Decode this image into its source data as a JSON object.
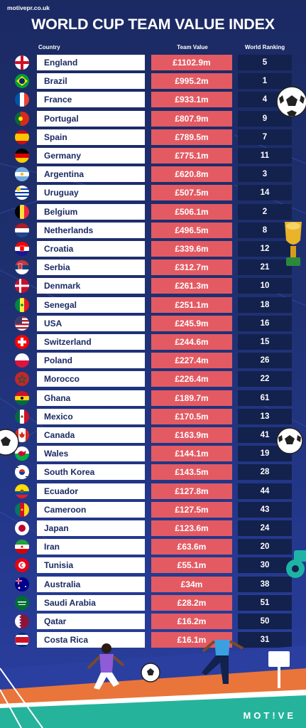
{
  "site": "motivepr.co.uk",
  "title": "WORLD CUP TEAM VALUE INDEX",
  "headers": {
    "country": "Country",
    "value": "Team Value",
    "ranking": "World Ranking"
  },
  "brand": "MOT!VE",
  "colors": {
    "background": "#1e3070",
    "value_bar": "#e35a63",
    "rank_bar": "#13214d",
    "country_bar": "#ffffff"
  },
  "chart_data": {
    "type": "table",
    "title": "WORLD CUP TEAM VALUE INDEX",
    "columns": [
      "Country",
      "Team Value",
      "World Ranking"
    ],
    "rows": [
      {
        "country": "England",
        "value": "£1102.9m",
        "rank": "5",
        "flag": "england"
      },
      {
        "country": "Brazil",
        "value": "£995.2m",
        "rank": "1",
        "flag": "brazil"
      },
      {
        "country": "France",
        "value": "£933.1m",
        "rank": "4",
        "flag": "france"
      },
      {
        "country": "Portugal",
        "value": "£807.9m",
        "rank": "9",
        "flag": "portugal"
      },
      {
        "country": "Spain",
        "value": "£789.5m",
        "rank": "7",
        "flag": "spain"
      },
      {
        "country": "Germany",
        "value": "£775.1m",
        "rank": "11",
        "flag": "germany"
      },
      {
        "country": "Argentina",
        "value": "£620.8m",
        "rank": "3",
        "flag": "argentina"
      },
      {
        "country": "Uruguay",
        "value": "£507.5m",
        "rank": "14",
        "flag": "uruguay"
      },
      {
        "country": "Belgium",
        "value": "£506.1m",
        "rank": "2",
        "flag": "belgium"
      },
      {
        "country": "Netherlands",
        "value": "£496.5m",
        "rank": "8",
        "flag": "netherlands"
      },
      {
        "country": "Croatia",
        "value": "£339.6m",
        "rank": "12",
        "flag": "croatia"
      },
      {
        "country": "Serbia",
        "value": "£312.7m",
        "rank": "21",
        "flag": "serbia"
      },
      {
        "country": "Denmark",
        "value": "£261.3m",
        "rank": "10",
        "flag": "denmark"
      },
      {
        "country": "Senegal",
        "value": "£251.1m",
        "rank": "18",
        "flag": "senegal"
      },
      {
        "country": "USA",
        "value": "£245.9m",
        "rank": "16",
        "flag": "usa"
      },
      {
        "country": "Switzerland",
        "value": "£244.6m",
        "rank": "15",
        "flag": "switzerland"
      },
      {
        "country": "Poland",
        "value": "£227.4m",
        "rank": "26",
        "flag": "poland"
      },
      {
        "country": "Morocco",
        "value": "£226.4m",
        "rank": "22",
        "flag": "morocco"
      },
      {
        "country": "Ghana",
        "value": "£189.7m",
        "rank": "61",
        "flag": "ghana"
      },
      {
        "country": "Mexico",
        "value": "£170.5m",
        "rank": "13",
        "flag": "mexico"
      },
      {
        "country": "Canada",
        "value": "£163.9m",
        "rank": "41",
        "flag": "canada"
      },
      {
        "country": "Wales",
        "value": "£144.1m",
        "rank": "19",
        "flag": "wales"
      },
      {
        "country": "South Korea",
        "value": "£143.5m",
        "rank": "28",
        "flag": "south-korea"
      },
      {
        "country": "Ecuador",
        "value": "£127.8m",
        "rank": "44",
        "flag": "ecuador"
      },
      {
        "country": "Cameroon",
        "value": "£127.5m",
        "rank": "43",
        "flag": "cameroon"
      },
      {
        "country": "Japan",
        "value": "£123.6m",
        "rank": "24",
        "flag": "japan"
      },
      {
        "country": "Iran",
        "value": "£63.6m",
        "rank": "20",
        "flag": "iran"
      },
      {
        "country": "Tunisia",
        "value": "£55.1m",
        "rank": "30",
        "flag": "tunisia"
      },
      {
        "country": "Australia",
        "value": "£34m",
        "rank": "38",
        "flag": "australia"
      },
      {
        "country": "Saudi Arabia",
        "value": "£28.2m",
        "rank": "51",
        "flag": "saudi-arabia"
      },
      {
        "country": "Qatar",
        "value": "£16.2m",
        "rank": "50",
        "flag": "qatar"
      },
      {
        "country": "Costa Rica",
        "value": "£16.1m",
        "rank": "31",
        "flag": "costa-rica"
      }
    ]
  }
}
